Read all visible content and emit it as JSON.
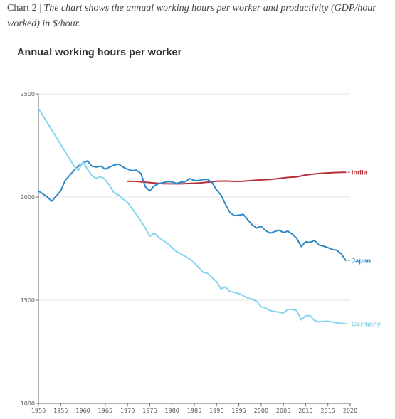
{
  "caption": {
    "label": "Chart 2",
    "separator": "|",
    "text": "The chart shows the annual working hours per worker and productivity (GDP/hour worked) in $/hour."
  },
  "chart_data": {
    "type": "line",
    "title": "Annual working hours per worker",
    "xlabel": "",
    "ylabel": "",
    "xlim": [
      1950,
      2020
    ],
    "ylim": [
      1000,
      2500
    ],
    "x_ticks": [
      1950,
      1955,
      1960,
      1965,
      1970,
      1975,
      1980,
      1985,
      1990,
      1995,
      2000,
      2005,
      2010,
      2015,
      2020
    ],
    "y_ticks": [
      1000,
      1500,
      2000,
      2500
    ],
    "grid": "horizontal",
    "legend": "end-of-line labels",
    "series": [
      {
        "name": "India",
        "color": "#b5313a",
        "points": [
          [
            1970,
            2077
          ],
          [
            1972,
            2076
          ],
          [
            1974,
            2072
          ],
          [
            1976,
            2068
          ],
          [
            1978,
            2065
          ],
          [
            1980,
            2064
          ],
          [
            1982,
            2064
          ],
          [
            1984,
            2066
          ],
          [
            1986,
            2068
          ],
          [
            1988,
            2072
          ],
          [
            1990,
            2077
          ],
          [
            1992,
            2078
          ],
          [
            1994,
            2076
          ],
          [
            1996,
            2077
          ],
          [
            1998,
            2080
          ],
          [
            2000,
            2083
          ],
          [
            2002,
            2085
          ],
          [
            2004,
            2090
          ],
          [
            2006,
            2095
          ],
          [
            2008,
            2098
          ],
          [
            2010,
            2107
          ],
          [
            2012,
            2112
          ],
          [
            2014,
            2116
          ],
          [
            2016,
            2118
          ],
          [
            2018,
            2120
          ],
          [
            2019,
            2120
          ]
        ]
      },
      {
        "name": "Japan",
        "color": "#2e88c6",
        "points": [
          [
            1950,
            2030
          ],
          [
            1951,
            2015
          ],
          [
            1952,
            2000
          ],
          [
            1953,
            1980
          ],
          [
            1954,
            2005
          ],
          [
            1955,
            2030
          ],
          [
            1956,
            2080
          ],
          [
            1957,
            2105
          ],
          [
            1958,
            2130
          ],
          [
            1959,
            2150
          ],
          [
            1960,
            2165
          ],
          [
            1961,
            2175
          ],
          [
            1962,
            2150
          ],
          [
            1963,
            2145
          ],
          [
            1964,
            2150
          ],
          [
            1965,
            2135
          ],
          [
            1966,
            2145
          ],
          [
            1967,
            2155
          ],
          [
            1968,
            2160
          ],
          [
            1969,
            2145
          ],
          [
            1970,
            2135
          ],
          [
            1971,
            2128
          ],
          [
            1972,
            2130
          ],
          [
            1973,
            2115
          ],
          [
            1974,
            2050
          ],
          [
            1975,
            2030
          ],
          [
            1976,
            2055
          ],
          [
            1977,
            2065
          ],
          [
            1978,
            2070
          ],
          [
            1979,
            2074
          ],
          [
            1980,
            2074
          ],
          [
            1981,
            2066
          ],
          [
            1982,
            2072
          ],
          [
            1983,
            2074
          ],
          [
            1984,
            2090
          ],
          [
            1985,
            2080
          ],
          [
            1986,
            2080
          ],
          [
            1987,
            2085
          ],
          [
            1988,
            2085
          ],
          [
            1989,
            2070
          ],
          [
            1990,
            2035
          ],
          [
            1991,
            2010
          ],
          [
            1992,
            1965
          ],
          [
            1993,
            1925
          ],
          [
            1994,
            1910
          ],
          [
            1995,
            1912
          ],
          [
            1996,
            1916
          ],
          [
            1997,
            1890
          ],
          [
            1998,
            1866
          ],
          [
            1999,
            1850
          ],
          [
            2000,
            1858
          ],
          [
            2001,
            1838
          ],
          [
            2002,
            1825
          ],
          [
            2003,
            1832
          ],
          [
            2004,
            1840
          ],
          [
            2005,
            1828
          ],
          [
            2006,
            1835
          ],
          [
            2007,
            1820
          ],
          [
            2008,
            1800
          ],
          [
            2009,
            1760
          ],
          [
            2010,
            1783
          ],
          [
            2011,
            1780
          ],
          [
            2012,
            1790
          ],
          [
            2013,
            1768
          ],
          [
            2014,
            1762
          ],
          [
            2015,
            1755
          ],
          [
            2016,
            1746
          ],
          [
            2017,
            1742
          ],
          [
            2018,
            1725
          ],
          [
            2019,
            1693
          ]
        ]
      },
      {
        "name": "Germany",
        "color": "#86d4ee",
        "points": [
          [
            1950,
            2430
          ],
          [
            1951,
            2395
          ],
          [
            1952,
            2360
          ],
          [
            1953,
            2325
          ],
          [
            1954,
            2290
          ],
          [
            1955,
            2255
          ],
          [
            1956,
            2220
          ],
          [
            1957,
            2185
          ],
          [
            1958,
            2150
          ],
          [
            1959,
            2130
          ],
          [
            1960,
            2170
          ],
          [
            1961,
            2135
          ],
          [
            1962,
            2105
          ],
          [
            1963,
            2090
          ],
          [
            1964,
            2100
          ],
          [
            1965,
            2085
          ],
          [
            1966,
            2055
          ],
          [
            1967,
            2020
          ],
          [
            1968,
            2010
          ],
          [
            1969,
            1990
          ],
          [
            1970,
            1975
          ],
          [
            1971,
            1945
          ],
          [
            1972,
            1915
          ],
          [
            1973,
            1885
          ],
          [
            1974,
            1850
          ],
          [
            1975,
            1810
          ],
          [
            1976,
            1825
          ],
          [
            1977,
            1805
          ],
          [
            1978,
            1790
          ],
          [
            1979,
            1775
          ],
          [
            1980,
            1755
          ],
          [
            1981,
            1735
          ],
          [
            1982,
            1725
          ],
          [
            1983,
            1712
          ],
          [
            1984,
            1700
          ],
          [
            1985,
            1680
          ],
          [
            1986,
            1658
          ],
          [
            1987,
            1635
          ],
          [
            1988,
            1630
          ],
          [
            1989,
            1610
          ],
          [
            1990,
            1590
          ],
          [
            1991,
            1555
          ],
          [
            1992,
            1565
          ],
          [
            1993,
            1542
          ],
          [
            1994,
            1538
          ],
          [
            1995,
            1532
          ],
          [
            1996,
            1522
          ],
          [
            1997,
            1510
          ],
          [
            1998,
            1505
          ],
          [
            1999,
            1495
          ],
          [
            2000,
            1468
          ],
          [
            2001,
            1462
          ],
          [
            2002,
            1450
          ],
          [
            2003,
            1445
          ],
          [
            2004,
            1442
          ],
          [
            2005,
            1438
          ],
          [
            2006,
            1455
          ],
          [
            2007,
            1455
          ],
          [
            2008,
            1450
          ],
          [
            2009,
            1405
          ],
          [
            2010,
            1425
          ],
          [
            2011,
            1425
          ],
          [
            2012,
            1402
          ],
          [
            2013,
            1395
          ],
          [
            2014,
            1398
          ],
          [
            2015,
            1398
          ],
          [
            2016,
            1394
          ],
          [
            2017,
            1390
          ],
          [
            2018,
            1388
          ],
          [
            2019,
            1386
          ]
        ]
      }
    ]
  }
}
